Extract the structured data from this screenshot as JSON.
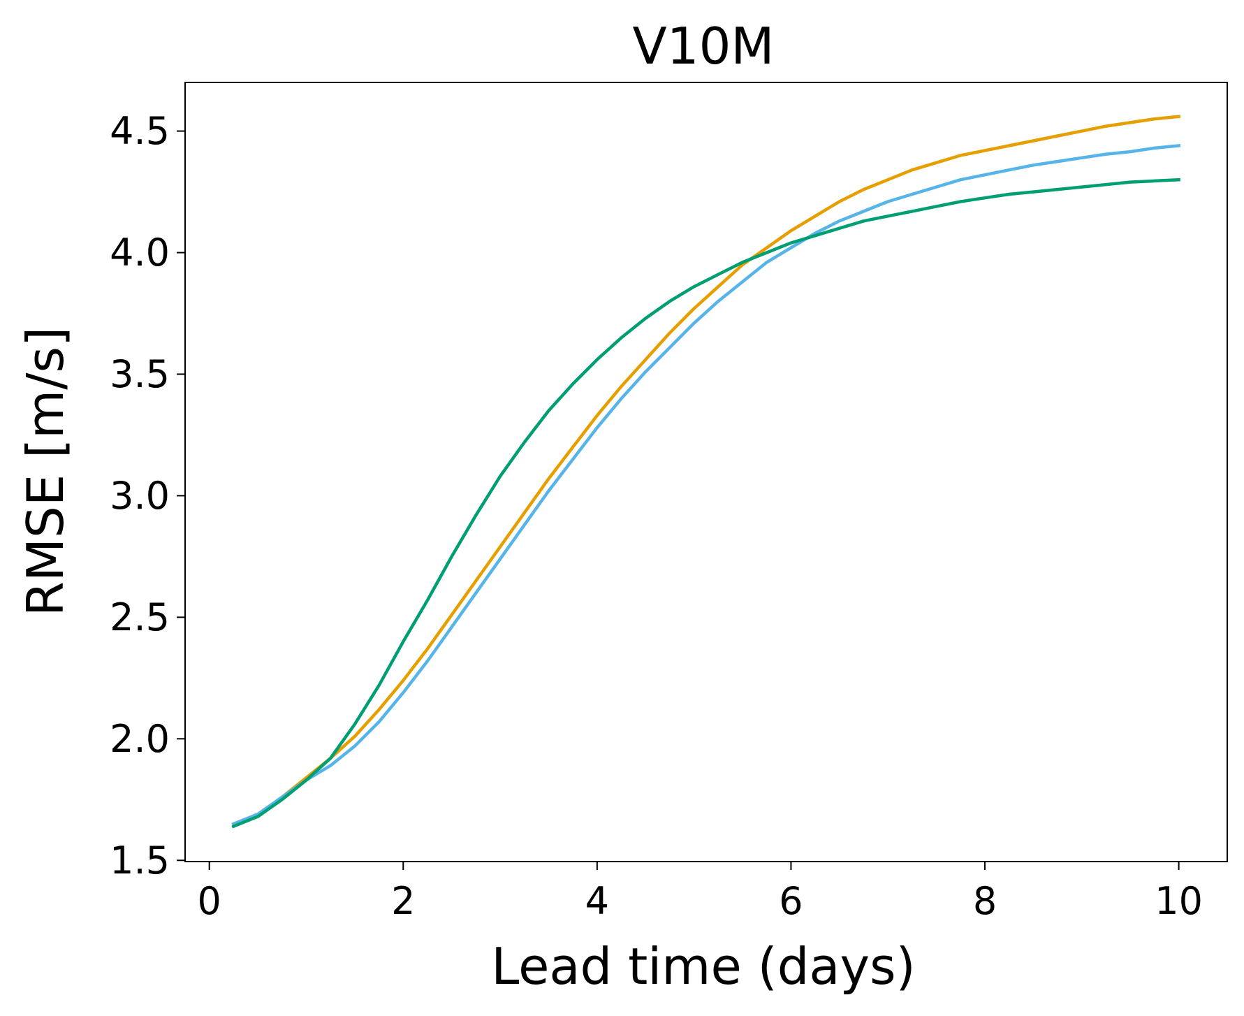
{
  "chart_data": {
    "type": "line",
    "title": "V10M",
    "xlabel": "Lead time (days)",
    "ylabel": "RMSE [m/s]",
    "xlim": [
      -0.25,
      10.5
    ],
    "ylim": [
      1.495,
      4.7
    ],
    "x_ticks": [
      0,
      2,
      4,
      6,
      8,
      10
    ],
    "x_tick_labels": [
      "0",
      "2",
      "4",
      "6",
      "8",
      "10"
    ],
    "y_ticks": [
      1.5,
      2.0,
      2.5,
      3.0,
      3.5,
      4.0,
      4.5
    ],
    "y_tick_labels": [
      "1.5",
      "2.0",
      "2.5",
      "3.0",
      "3.5",
      "4.0",
      "4.5"
    ],
    "grid": false,
    "legend": "none",
    "x": [
      0.25,
      0.5,
      0.75,
      1.0,
      1.25,
      1.5,
      1.75,
      2.0,
      2.25,
      2.5,
      2.75,
      3.0,
      3.25,
      3.5,
      3.75,
      4.0,
      4.25,
      4.5,
      4.75,
      5.0,
      5.25,
      5.5,
      5.75,
      6.0,
      6.25,
      6.5,
      6.75,
      7.0,
      7.25,
      7.5,
      7.75,
      8.0,
      8.25,
      8.5,
      8.75,
      9.0,
      9.25,
      9.5,
      9.75,
      10.0
    ],
    "series": [
      {
        "color": "#E69F00",
        "values": [
          1.65,
          1.69,
          1.76,
          1.84,
          1.92,
          2.01,
          2.12,
          2.24,
          2.37,
          2.51,
          2.65,
          2.79,
          2.93,
          3.07,
          3.2,
          3.33,
          3.45,
          3.56,
          3.67,
          3.77,
          3.86,
          3.95,
          4.02,
          4.09,
          4.15,
          4.21,
          4.26,
          4.3,
          4.34,
          4.37,
          4.4,
          4.42,
          4.44,
          4.46,
          4.48,
          4.5,
          4.52,
          4.535,
          4.55,
          4.56
        ]
      },
      {
        "color": "#56B4E9",
        "values": [
          1.65,
          1.69,
          1.76,
          1.83,
          1.89,
          1.97,
          2.07,
          2.19,
          2.32,
          2.46,
          2.6,
          2.74,
          2.88,
          3.02,
          3.15,
          3.28,
          3.4,
          3.51,
          3.61,
          3.71,
          3.8,
          3.88,
          3.96,
          4.02,
          4.08,
          4.13,
          4.17,
          4.21,
          4.24,
          4.27,
          4.3,
          4.32,
          4.34,
          4.36,
          4.375,
          4.39,
          4.405,
          4.415,
          4.43,
          4.44
        ]
      },
      {
        "color": "#009E73",
        "values": [
          1.64,
          1.68,
          1.75,
          1.83,
          1.92,
          2.06,
          2.22,
          2.4,
          2.57,
          2.75,
          2.92,
          3.08,
          3.22,
          3.35,
          3.46,
          3.56,
          3.65,
          3.73,
          3.8,
          3.86,
          3.91,
          3.96,
          4.0,
          4.04,
          4.07,
          4.1,
          4.13,
          4.15,
          4.17,
          4.19,
          4.21,
          4.225,
          4.24,
          4.25,
          4.26,
          4.27,
          4.28,
          4.29,
          4.295,
          4.3
        ]
      }
    ]
  }
}
